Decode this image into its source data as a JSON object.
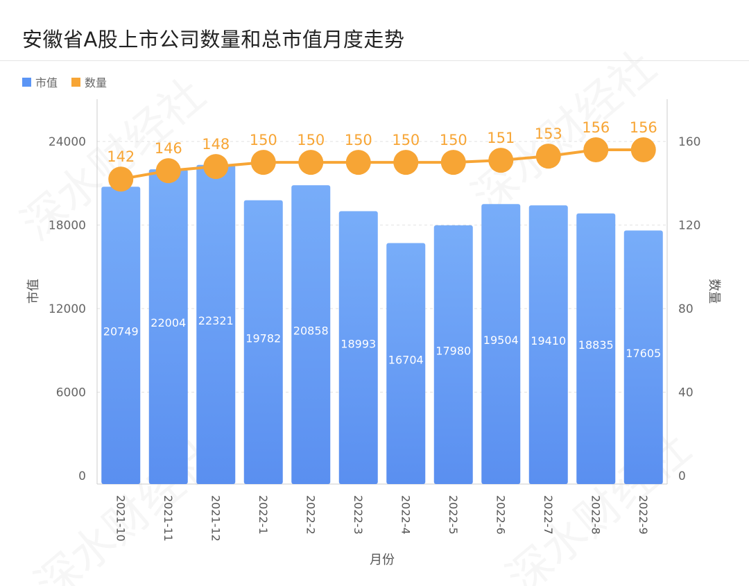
{
  "watermark": "深水财经社",
  "chart_data": {
    "type": "bar+line",
    "title": "安徽省A股上市公司数量和总市值月度走势",
    "xlabel": "月份",
    "ylabel": "市值",
    "y2label": "数量",
    "categories": [
      "2021-10",
      "2021-11",
      "2021-12",
      "2022-1",
      "2022-2",
      "2022-3",
      "2022-4",
      "2022-5",
      "2022-6",
      "2022-7",
      "2022-8",
      "2022-9"
    ],
    "series": [
      {
        "name": "市值",
        "type": "bar",
        "axis": "left",
        "color": "#5b95f5",
        "values": [
          20749,
          22004,
          22321,
          19782,
          20858,
          18993,
          16704,
          17980,
          19504,
          19410,
          18835,
          17605
        ]
      },
      {
        "name": "数量",
        "type": "line",
        "axis": "right",
        "color": "#f7a535",
        "values": [
          142,
          146,
          148,
          150,
          150,
          150,
          150,
          150,
          151,
          153,
          156,
          156
        ]
      }
    ],
    "yticks": [
      0,
      6000,
      12000,
      18000,
      24000
    ],
    "y2ticks": [
      0,
      40,
      80,
      120,
      160
    ],
    "ylim": [
      0,
      27000
    ],
    "y2lim": [
      0,
      180
    ],
    "legend": "top-left",
    "grid": true
  }
}
